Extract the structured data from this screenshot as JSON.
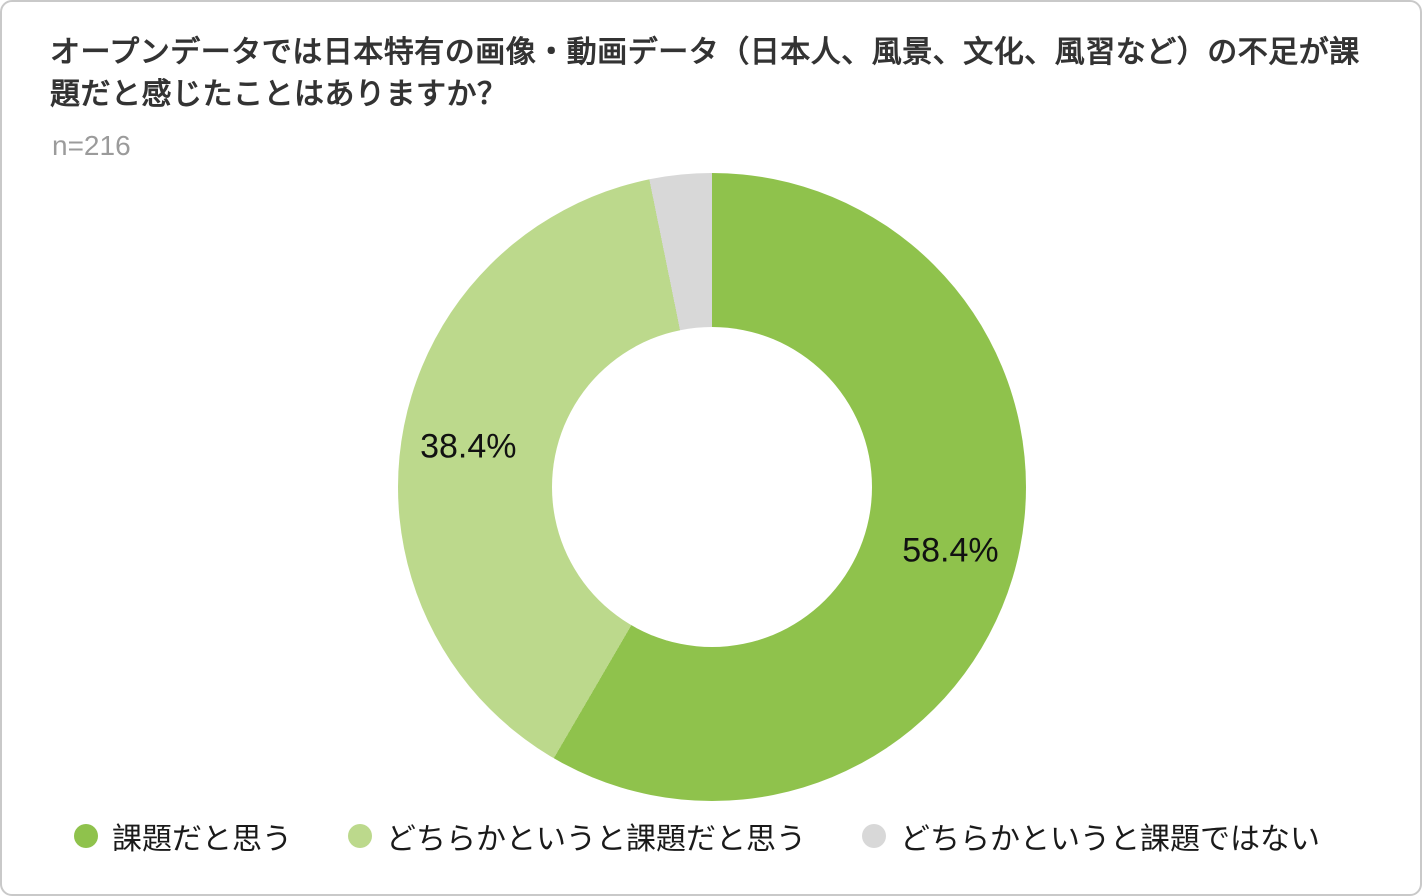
{
  "chart_data": {
    "type": "pie",
    "donut": true,
    "title": "オープンデータでは日本特有の画像・動画データ（日本人、風景、文化、風習など）の不足が課題だと感じたことはありますか？",
    "sample_size": "n=216",
    "start_angle_deg": 0,
    "direction": "clockwise",
    "legend_position": "bottom",
    "hole_color": "#ffffff",
    "slices": [
      {
        "label": "課題だと思う",
        "value": 58.4,
        "data_label": "58.4%",
        "color": "#8fc24c"
      },
      {
        "label": "どちらかというと課題だと思う",
        "value": 38.4,
        "data_label": "38.4%",
        "color": "#bcd98c"
      },
      {
        "label": "どちらかというと課題ではない",
        "value": 3.2,
        "data_label": "",
        "color": "#d8d8d8"
      }
    ]
  }
}
